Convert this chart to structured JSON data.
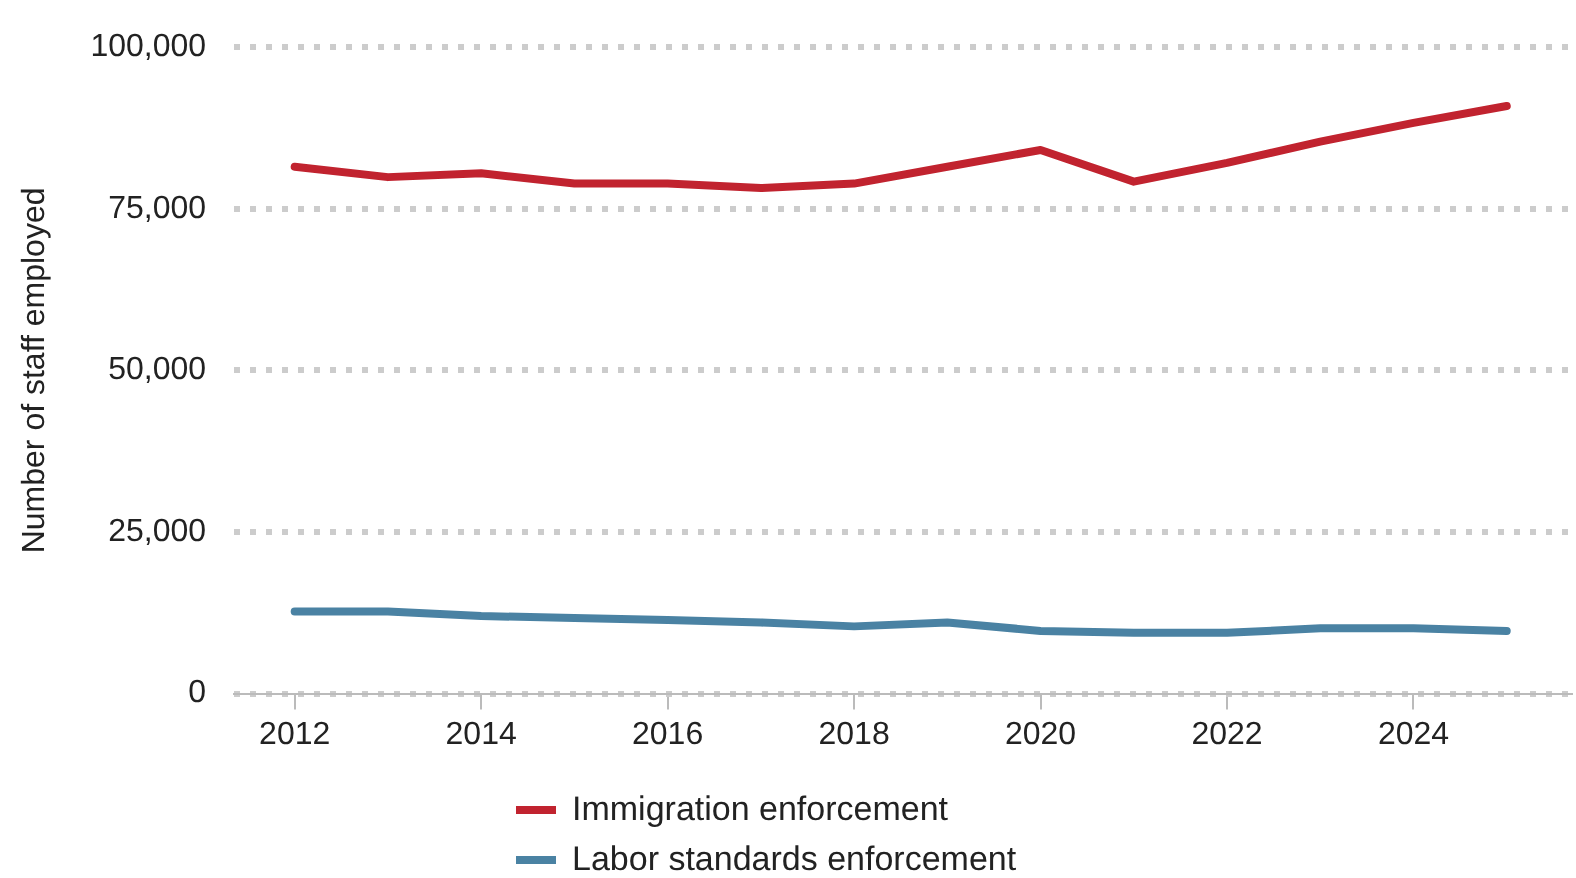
{
  "chart_data": {
    "type": "line",
    "ylabel": "Number of staff employed",
    "x": [
      2012,
      2013,
      2014,
      2015,
      2016,
      2017,
      2018,
      2019,
      2020,
      2021,
      2022,
      2023,
      2024,
      2025
    ],
    "series": [
      {
        "name": "Immigration enforcement",
        "color": "#c1232f",
        "values": [
          81500,
          79900,
          80500,
          78900,
          78900,
          78200,
          78900,
          81500,
          84100,
          79200,
          82100,
          85400,
          88300,
          90900
        ]
      },
      {
        "name": "Labor standards enforcement",
        "color": "#4a82a3",
        "values": [
          12700,
          12700,
          12000,
          11700,
          11400,
          11000,
          10400,
          11000,
          9700,
          9400,
          9400,
          10100,
          10100,
          9700
        ]
      }
    ],
    "xlim": [
      2011.35,
      2025.7
    ],
    "xticks": [
      2012,
      2014,
      2016,
      2018,
      2020,
      2022,
      2024
    ],
    "ylim": [
      0,
      100000
    ],
    "yticks": [
      0,
      {
        "value": 25000,
        "label": "25,000"
      },
      {
        "value": 50000,
        "label": "50,000"
      },
      {
        "value": 75000,
        "label": "75,000"
      },
      {
        "value": 100000,
        "label": "100,000"
      }
    ],
    "grid": "y",
    "legend": "bottom",
    "marker": "none",
    "line_style": "solid"
  }
}
